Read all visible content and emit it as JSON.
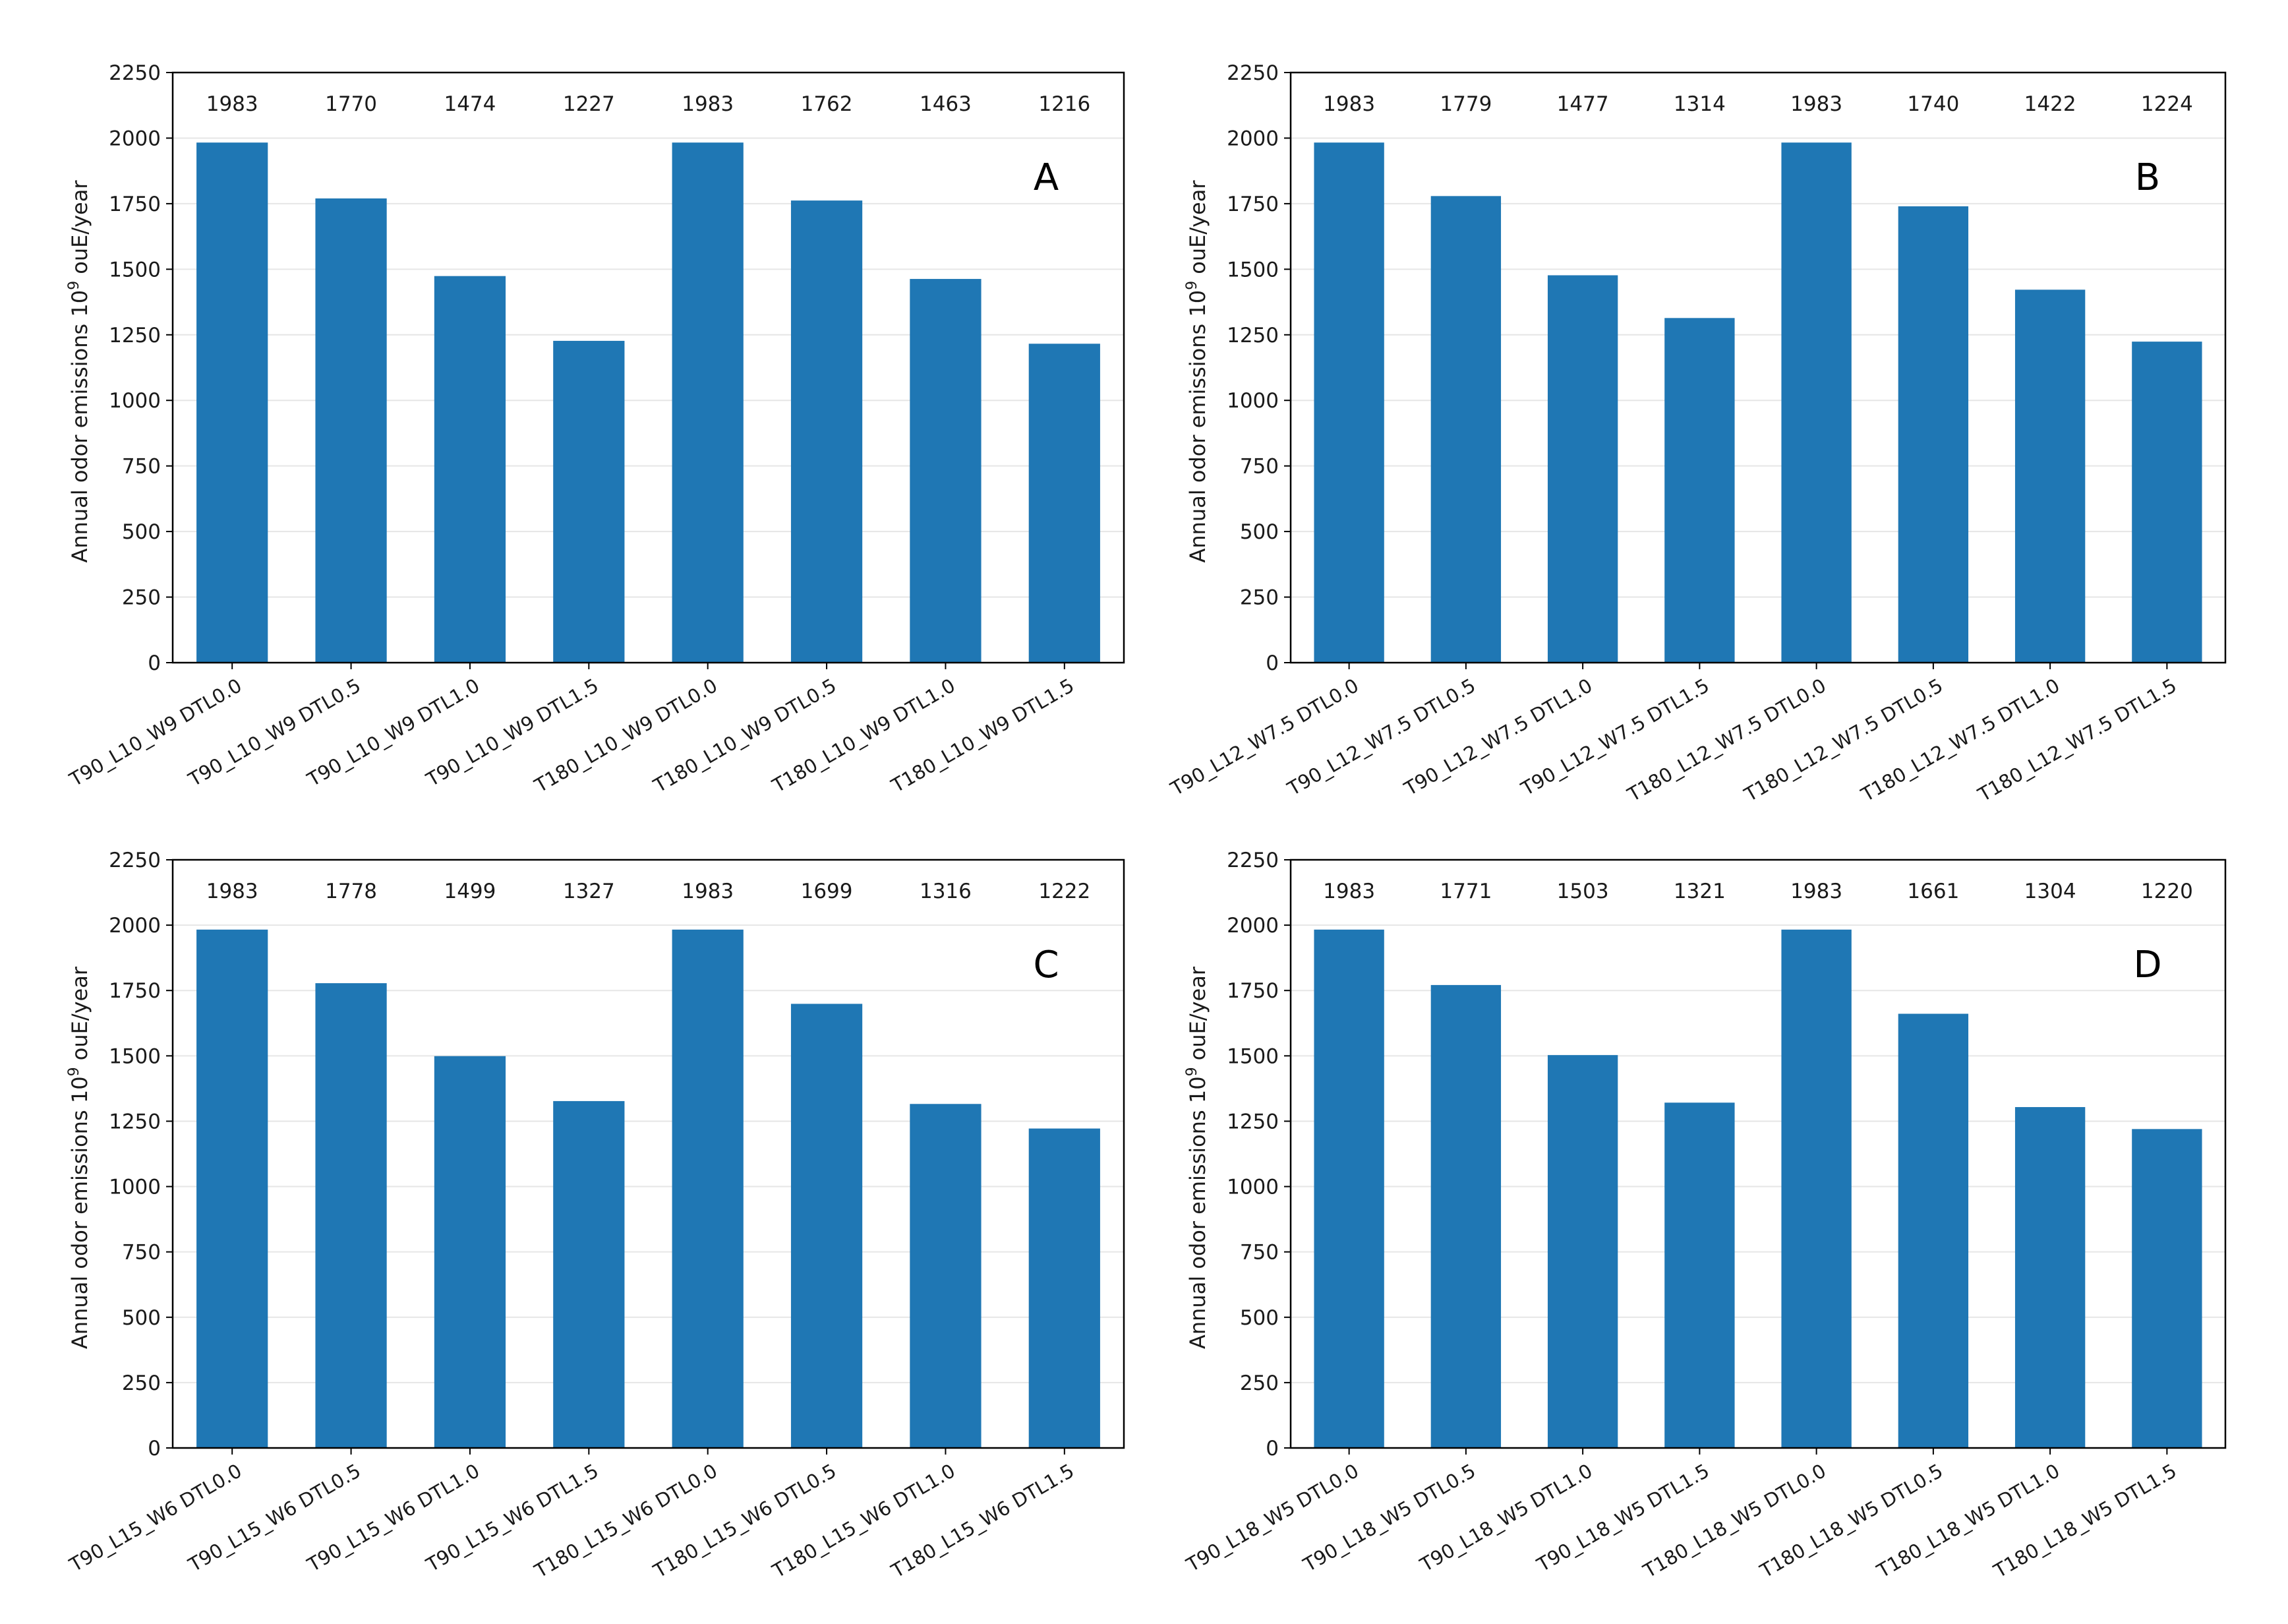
{
  "figure": {
    "charts": [
      {
        "type": "bar",
        "panel_label": "A",
        "ylabel": "Annual odor emissions 10",
        "ylabel_sup": "9",
        "ylabel_suffix": " ouE/year",
        "ylim": [
          0,
          2250
        ],
        "yticks": [
          0,
          250,
          500,
          750,
          1000,
          1250,
          1500,
          1750,
          2000,
          2250
        ],
        "grid": true,
        "color": "#1f77b4",
        "categories": [
          "T90_L10_W9 DTL0.0",
          "T90_L10_W9 DTL0.5",
          "T90_L10_W9 DTL1.0",
          "T90_L10_W9 DTL1.5",
          "T180_L10_W9 DTL0.0",
          "T180_L10_W9 DTL0.5",
          "T180_L10_W9 DTL1.0",
          "T180_L10_W9 DTL1.5"
        ],
        "values": [
          1983,
          1770,
          1474,
          1227,
          1983,
          1762,
          1463,
          1216
        ],
        "value_labels": [
          "1983",
          "1770",
          "1474",
          "1227",
          "1983",
          "1762",
          "1463",
          "1216"
        ]
      },
      {
        "type": "bar",
        "panel_label": "B",
        "ylabel": "Annual odor emissions 10",
        "ylabel_sup": "9",
        "ylabel_suffix": " ouE/year",
        "ylim": [
          0,
          2250
        ],
        "yticks": [
          0,
          250,
          500,
          750,
          1000,
          1250,
          1500,
          1750,
          2000,
          2250
        ],
        "grid": true,
        "color": "#1f77b4",
        "categories": [
          "T90_L12_W7.5 DTL0.0",
          "T90_L12_W7.5 DTL0.5",
          "T90_L12_W7.5 DTL1.0",
          "T90_L12_W7.5 DTL1.5",
          "T180_L12_W7.5 DTL0.0",
          "T180_L12_W7.5 DTL0.5",
          "T180_L12_W7.5 DTL1.0",
          "T180_L12_W7.5 DTL1.5"
        ],
        "values": [
          1983,
          1779,
          1477,
          1314,
          1983,
          1740,
          1422,
          1224
        ],
        "value_labels": [
          "1983",
          "1779",
          "1477",
          "1314",
          "1983",
          "1740",
          "1422",
          "1224"
        ]
      },
      {
        "type": "bar",
        "panel_label": "C",
        "ylabel": "Annual odor emissions 10",
        "ylabel_sup": "9",
        "ylabel_suffix": " ouE/year",
        "ylim": [
          0,
          2250
        ],
        "yticks": [
          0,
          250,
          500,
          750,
          1000,
          1250,
          1500,
          1750,
          2000,
          2250
        ],
        "grid": true,
        "color": "#1f77b4",
        "categories": [
          "T90_L15_W6 DTL0.0",
          "T90_L15_W6 DTL0.5",
          "T90_L15_W6 DTL1.0",
          "T90_L15_W6 DTL1.5",
          "T180_L15_W6 DTL0.0",
          "T180_L15_W6 DTL0.5",
          "T180_L15_W6 DTL1.0",
          "T180_L15_W6 DTL1.5"
        ],
        "values": [
          1983,
          1778,
          1499,
          1327,
          1983,
          1699,
          1316,
          1222
        ],
        "value_labels": [
          "1983",
          "1778",
          "1499",
          "1327",
          "1983",
          "1699",
          "1316",
          "1222"
        ]
      },
      {
        "type": "bar",
        "panel_label": "D",
        "ylabel": "Annual odor emissions 10",
        "ylabel_sup": "9",
        "ylabel_suffix": " ouE/year",
        "ylim": [
          0,
          2250
        ],
        "yticks": [
          0,
          250,
          500,
          750,
          1000,
          1250,
          1500,
          1750,
          2000,
          2250
        ],
        "grid": true,
        "color": "#1f77b4",
        "categories": [
          "T90_L18_W5 DTL0.0",
          "T90_L18_W5 DTL0.5",
          "T90_L18_W5 DTL1.0",
          "T90_L18_W5 DTL1.5",
          "T180_L18_W5 DTL0.0",
          "T180_L18_W5 DTL0.5",
          "T180_L18_W5 DTL1.0",
          "T180_L18_W5 DTL1.5"
        ],
        "values": [
          1983,
          1771,
          1503,
          1321,
          1983,
          1661,
          1304,
          1220
        ],
        "value_labels": [
          "1983",
          "1771",
          "1503",
          "1321",
          "1983",
          "1661",
          "1304",
          "1220"
        ]
      }
    ]
  },
  "chart_data": [
    {
      "type": "bar",
      "title": "A",
      "ylabel": "Annual odor emissions 10^9 ouE/year",
      "xlabel": "",
      "ylim": [
        0,
        2250
      ],
      "categories": [
        "T90_L10_W9 DTL0.0",
        "T90_L10_W9 DTL0.5",
        "T90_L10_W9 DTL1.0",
        "T90_L10_W9 DTL1.5",
        "T180_L10_W9 DTL0.0",
        "T180_L10_W9 DTL0.5",
        "T180_L10_W9 DTL1.0",
        "T180_L10_W9 DTL1.5"
      ],
      "values": [
        1983,
        1770,
        1474,
        1227,
        1983,
        1762,
        1463,
        1216
      ]
    },
    {
      "type": "bar",
      "title": "B",
      "ylabel": "Annual odor emissions 10^9 ouE/year",
      "xlabel": "",
      "ylim": [
        0,
        2250
      ],
      "categories": [
        "T90_L12_W7.5 DTL0.0",
        "T90_L12_W7.5 DTL0.5",
        "T90_L12_W7.5 DTL1.0",
        "T90_L12_W7.5 DTL1.5",
        "T180_L12_W7.5 DTL0.0",
        "T180_L12_W7.5 DTL0.5",
        "T180_L12_W7.5 DTL1.0",
        "T180_L12_W7.5 DTL1.5"
      ],
      "values": [
        1983,
        1779,
        1477,
        1314,
        1983,
        1740,
        1422,
        1224
      ]
    },
    {
      "type": "bar",
      "title": "C",
      "ylabel": "Annual odor emissions 10^9 ouE/year",
      "xlabel": "",
      "ylim": [
        0,
        2250
      ],
      "categories": [
        "T90_L15_W6 DTL0.0",
        "T90_L15_W6 DTL0.5",
        "T90_L15_W6 DTL1.0",
        "T90_L15_W6 DTL1.5",
        "T180_L15_W6 DTL0.0",
        "T180_L15_W6 DTL0.5",
        "T180_L15_W6 DTL1.0",
        "T180_L15_W6 DTL1.5"
      ],
      "values": [
        1983,
        1778,
        1499,
        1327,
        1983,
        1699,
        1316,
        1222
      ]
    },
    {
      "type": "bar",
      "title": "D",
      "ylabel": "Annual odor emissions 10^9 ouE/year",
      "xlabel": "",
      "ylim": [
        0,
        2250
      ],
      "categories": [
        "T90_L18_W5 DTL0.0",
        "T90_L18_W5 DTL0.5",
        "T90_L18_W5 DTL1.0",
        "T90_L18_W5 DTL1.5",
        "T180_L18_W5 DTL0.0",
        "T180_L18_W5 DTL0.5",
        "T180_L18_W5 DTL1.0",
        "T180_L18_W5 DTL1.5"
      ],
      "values": [
        1983,
        1771,
        1503,
        1321,
        1983,
        1661,
        1304,
        1220
      ]
    }
  ]
}
